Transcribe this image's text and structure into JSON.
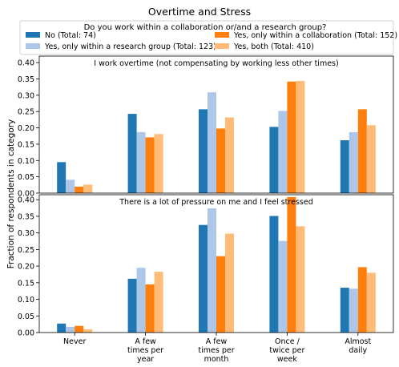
{
  "chart_data": {
    "type": "bar",
    "title": "Overtime and Stress",
    "ylabel": "Fraction of respondents in category",
    "legend": {
      "title": "Do you work within a collaboration or/and a research group?",
      "placement": "top"
    },
    "categories": [
      [
        "Never"
      ],
      [
        "A few",
        "times per",
        "year"
      ],
      [
        "A few",
        "times per",
        "month"
      ],
      [
        "Once /",
        "twice per",
        "week"
      ],
      [
        "Almost",
        "daily"
      ]
    ],
    "series": [
      {
        "name": "No (Total: 74)",
        "color": "#1f77b4"
      },
      {
        "name": "Yes, only within a research group (Total: 123)",
        "color": "#aec7e8"
      },
      {
        "name": "Yes, only within a collaboration (Total: 152)",
        "color": "#ff7f0e"
      },
      {
        "name": "Yes, both (Total: 410)",
        "color": "#ffbb78"
      }
    ],
    "panels": [
      {
        "title": "I work overtime (not compensating by working less other times)",
        "ylim": [
          0,
          0.42
        ],
        "yticks": [
          "0.00",
          "0.05",
          "0.10",
          "0.15",
          "0.20",
          "0.25",
          "0.30",
          "0.35",
          "0.40"
        ],
        "values": [
          [
            0.095,
            0.243,
            0.257,
            0.203,
            0.162
          ],
          [
            0.041,
            0.187,
            0.309,
            0.252,
            0.187
          ],
          [
            0.02,
            0.171,
            0.198,
            0.342,
            0.257
          ],
          [
            0.026,
            0.181,
            0.232,
            0.344,
            0.208
          ]
        ]
      },
      {
        "title": "There is a lot of pressure on me and I feel stressed",
        "ylim": [
          0,
          0.415
        ],
        "yticks": [
          "0.00",
          "0.05",
          "0.10",
          "0.15",
          "0.20",
          "0.25",
          "0.30",
          "0.35",
          "0.40"
        ],
        "values": [
          [
            0.027,
            0.162,
            0.324,
            0.351,
            0.135
          ],
          [
            0.017,
            0.195,
            0.374,
            0.276,
            0.132
          ],
          [
            0.02,
            0.145,
            0.23,
            0.408,
            0.197
          ],
          [
            0.01,
            0.183,
            0.298,
            0.32,
            0.18
          ]
        ]
      }
    ]
  }
}
